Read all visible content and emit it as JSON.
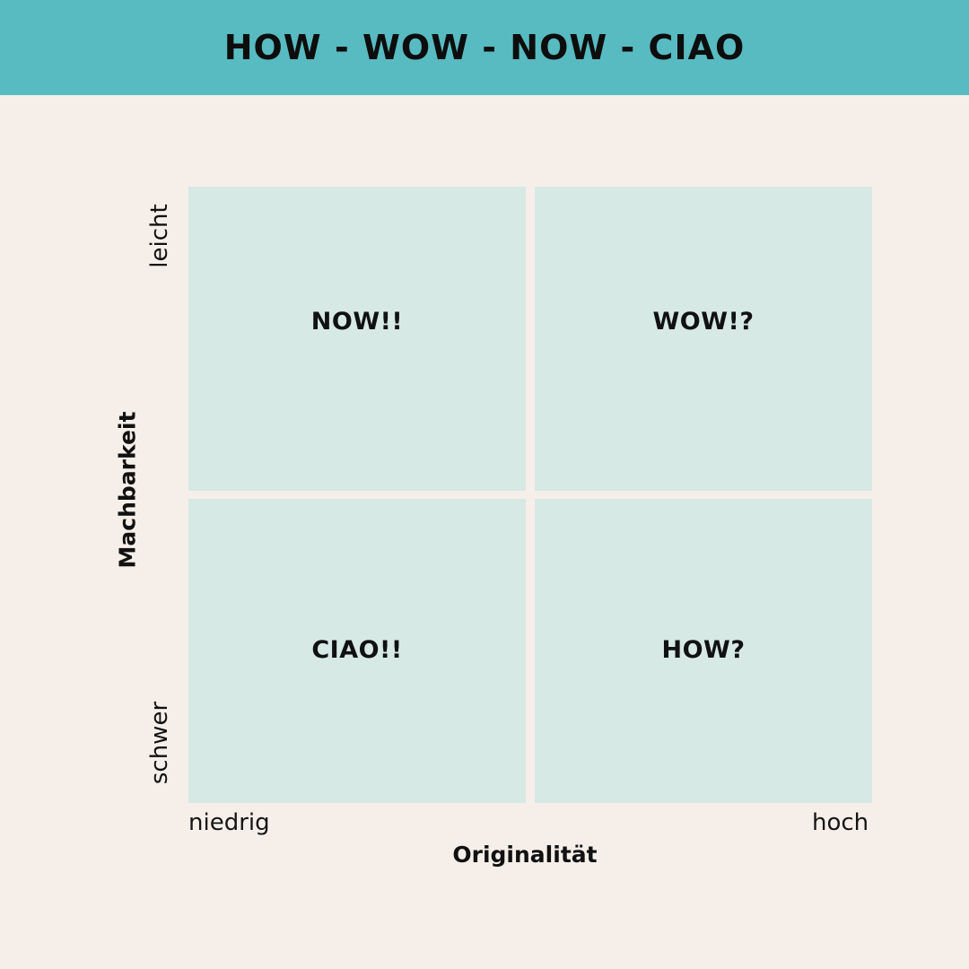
{
  "header": {
    "title": "HOW - WOW - NOW - CIAO"
  },
  "quadrants": {
    "top_left": "NOW!!",
    "top_right": "WOW!?",
    "bottom_left": "CIAO!!",
    "bottom_right": "HOW?"
  },
  "x_axis": {
    "title": "Originalität",
    "low": "niedrig",
    "high": "hoch"
  },
  "y_axis": {
    "title": "Machbarkeit",
    "high": "leicht",
    "low": "schwer"
  },
  "colors": {
    "header": "#57bbc1",
    "background": "#f6efe9",
    "quadrant": "#d6e9e5"
  }
}
